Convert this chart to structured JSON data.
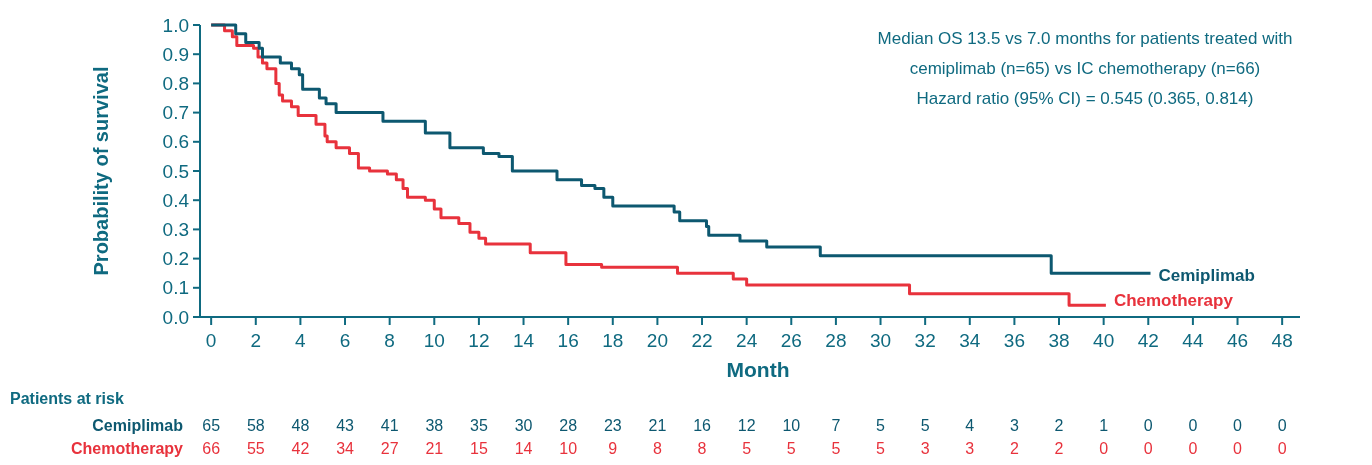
{
  "chart_data": {
    "type": "step",
    "xlabel": "Month",
    "ylabel": "Probability of survival",
    "xlim": [
      -0.5,
      48.8
    ],
    "ylim": [
      0,
      1
    ],
    "xticks": [
      0,
      2,
      4,
      6,
      8,
      10,
      12,
      14,
      16,
      18,
      20,
      22,
      24,
      26,
      28,
      30,
      32,
      34,
      36,
      38,
      40,
      42,
      44,
      46,
      48
    ],
    "yticks": [
      {
        "value": 0,
        "label": "0.0"
      },
      0.1,
      0.2,
      0.3,
      0.4,
      0.5,
      0.6,
      0.7,
      0.8,
      0.9,
      {
        "value": 1,
        "label": "1.0"
      }
    ],
    "series": [
      {
        "name": "Cemiplimab",
        "color": "#0d5870",
        "x": [
          0,
          1.1,
          1.55,
          2.15,
          2.3,
          3.1,
          3.6,
          3.95,
          4.1,
          4.85,
          5.15,
          5.6,
          7.7,
          9.6,
          10.7,
          12.2,
          12.9,
          13.5,
          15.5,
          16.6,
          17.2,
          17.6,
          18,
          20.75,
          21,
          22.2,
          22.3,
          23.7,
          24.9,
          27.3,
          37.65,
          42.1
        ],
        "values": [
          1.0,
          0.97,
          0.94,
          0.92,
          0.89,
          0.87,
          0.85,
          0.83,
          0.78,
          0.75,
          0.73,
          0.7,
          0.67,
          0.63,
          0.58,
          0.56,
          0.55,
          0.5,
          0.47,
          0.45,
          0.44,
          0.41,
          0.38,
          0.36,
          0.33,
          0.31,
          0.28,
          0.26,
          0.24,
          0.21,
          0.15,
          0.15
        ]
      },
      {
        "name": "Chemotherapy",
        "color": "#e8323c",
        "x": [
          0,
          0.6,
          0.95,
          1.15,
          1.9,
          2.1,
          2.3,
          2.5,
          2.9,
          3.05,
          3.2,
          3.6,
          3.9,
          4.7,
          5.1,
          5.2,
          5.6,
          6.2,
          6.6,
          7.1,
          7.9,
          8.3,
          8.6,
          8.8,
          9.6,
          10.0,
          10.3,
          11.1,
          11.6,
          12.0,
          12.3,
          14.3,
          15.9,
          17.5,
          20.9,
          23.4,
          24,
          31.3,
          38.45,
          40.1
        ],
        "values": [
          1.0,
          0.98,
          0.96,
          0.93,
          0.92,
          0.89,
          0.87,
          0.85,
          0.8,
          0.76,
          0.74,
          0.72,
          0.69,
          0.66,
          0.62,
          0.6,
          0.58,
          0.56,
          0.51,
          0.5,
          0.49,
          0.47,
          0.44,
          0.41,
          0.4,
          0.37,
          0.34,
          0.32,
          0.29,
          0.27,
          0.25,
          0.22,
          0.18,
          0.17,
          0.15,
          0.13,
          0.11,
          0.08,
          0.04,
          0.04
        ]
      }
    ],
    "annotations": [
      "Median OS 13.5 vs 7.0 months for patients treated with",
      "cemiplimab (n=65) vs IC chemotherapy (n=66)",
      "Hazard ratio (95% CI) = 0.545 (0.365, 0.814)",
      "Patients at risk",
      "65 58 48 43 41 38 35 30 28 23 21 16 12 10 7 5 5 4 3 2 1 0 0 0 0",
      "66 55 42 34 27 21 15 14 10 9 8 8 5 5 5 5 3 3 2 2 0 0 0 0 0"
    ]
  }
}
